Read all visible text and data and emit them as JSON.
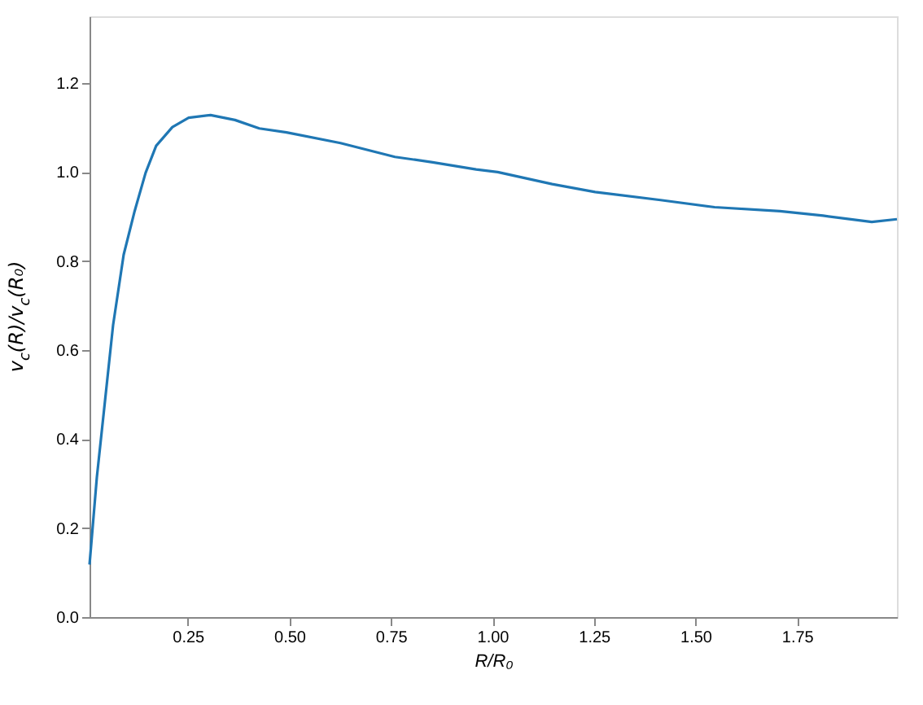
{
  "chart_data": {
    "type": "line",
    "xlabel": "R/R₀",
    "ylabel": "v$_{c}$(R)/v$_{c}$(R₀)",
    "x": [
      0.008,
      0.026,
      0.046,
      0.066,
      0.092,
      0.119,
      0.146,
      0.172,
      0.212,
      0.252,
      0.306,
      0.366,
      0.426,
      0.493,
      0.626,
      0.76,
      0.853,
      0.96,
      1.013,
      1.147,
      1.253,
      1.414,
      1.547,
      1.708,
      1.814,
      1.934,
      1.996
    ],
    "series": [
      {
        "color": "#1f77b4",
        "values": [
          0.118,
          0.314,
          0.485,
          0.656,
          0.814,
          0.912,
          0.998,
          1.059,
          1.101,
          1.122,
          1.128,
          1.117,
          1.098,
          1.089,
          1.065,
          1.034,
          1.022,
          1.006,
          1.0,
          0.973,
          0.955,
          0.937,
          0.921,
          0.912,
          0.902,
          0.888,
          0.894
        ]
      }
    ],
    "xlim": [
      0.008,
      1.996
    ],
    "xticks": [
      0.25,
      {
        "value": 0.5,
        "label": "0.50"
      },
      0.75,
      {
        "value": 1,
        "label": "1.00"
      },
      1.25,
      {
        "value": 1.5,
        "label": "1.50"
      },
      1.75
    ],
    "ylim": [
      0,
      1.35
    ],
    "yticks": [
      {
        "value": 0,
        "label": "0.0"
      },
      0.2,
      0.4,
      0.6,
      0.8,
      {
        "value": 1,
        "label": "1.0"
      },
      1.2
    ],
    "grid": false,
    "marker": "none",
    "line_style": "solid"
  }
}
